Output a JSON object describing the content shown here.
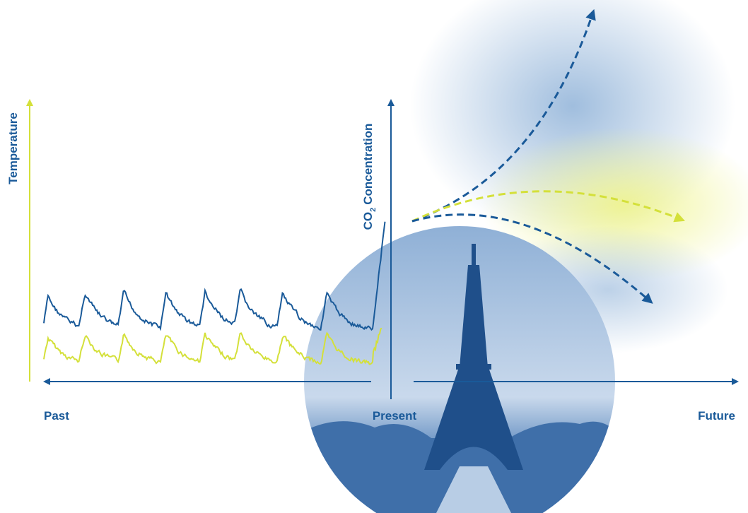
{
  "axes": {
    "temperature": "Temperature",
    "co2": {
      "main": "CO",
      "sub": "2",
      "rest": "Concentration"
    }
  },
  "timeline": {
    "past": "Past",
    "present": "Present",
    "future": "Future"
  }
}
